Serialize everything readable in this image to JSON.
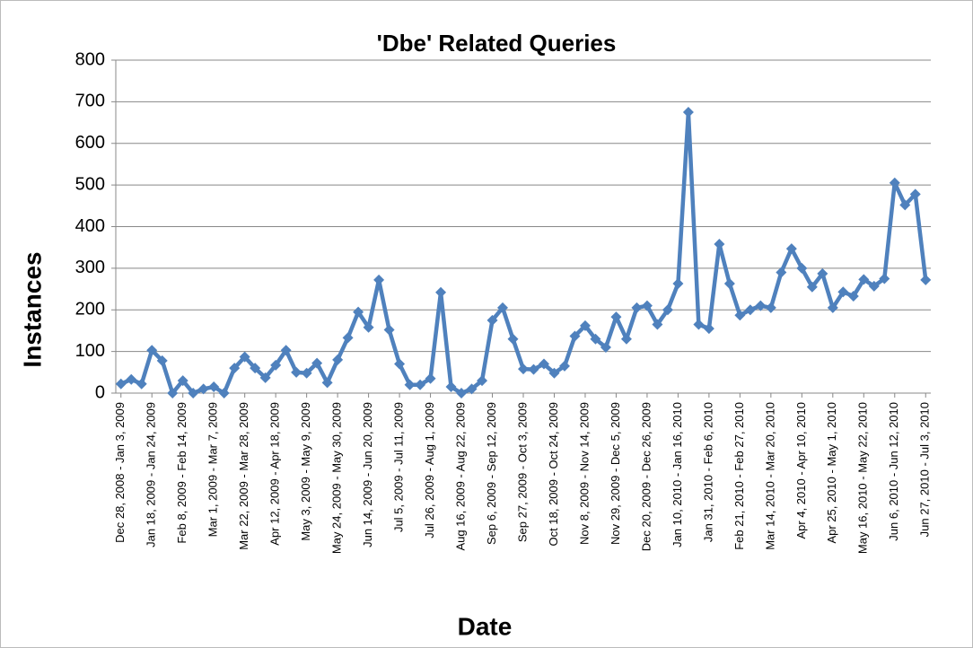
{
  "chart_data": {
    "type": "line",
    "title": "'Dbe' Related Queries",
    "xlabel": "Date",
    "ylabel": "Instances",
    "categories": [
      "Dec 28, 2008 - Jan 3, 2009",
      null,
      null,
      "Jan 18, 2009 - Jan 24, 2009",
      null,
      null,
      "Feb 8, 2009 - Feb 14, 2009",
      null,
      null,
      "Mar 1, 2009 - Mar 7, 2009",
      null,
      null,
      "Mar 22, 2009 - Mar 28, 2009",
      null,
      null,
      "Apr 12, 2009 - Apr 18, 2009",
      null,
      null,
      "May 3, 2009 - May 9, 2009",
      null,
      null,
      "May 24, 2009 - May 30, 2009",
      null,
      null,
      "Jun 14, 2009 - Jun 20, 2009",
      null,
      null,
      "Jul 5, 2009 - Jul 11, 2009",
      null,
      null,
      "Jul 26, 2009 - Aug 1, 2009",
      null,
      null,
      "Aug 16, 2009 - Aug 22, 2009",
      null,
      null,
      "Sep 6, 2009 - Sep 12, 2009",
      null,
      null,
      "Sep 27, 2009 - Oct 3, 2009",
      null,
      null,
      "Oct 18, 2009 - Oct 24, 2009",
      null,
      null,
      "Nov 8, 2009 - Nov 14, 2009",
      null,
      null,
      "Nov 29, 2009 - Dec 5, 2009",
      null,
      null,
      "Dec 20, 2009 - Dec 26, 2009",
      null,
      null,
      "Jan 10, 2010 - Jan 16, 2010",
      null,
      null,
      "Jan 31, 2010 - Feb 6, 2010",
      null,
      null,
      "Feb 21, 2010 - Feb 27, 2010",
      null,
      null,
      "Mar 14, 2010 - Mar 20, 2010",
      null,
      null,
      "Apr 4, 2010 - Apr 10, 2010",
      null,
      null,
      "Apr 25, 2010 - May 1, 2010",
      null,
      null,
      "May 16, 2010 - May 22, 2010",
      null,
      null,
      "Jun 6, 2010 - Jun 12, 2010",
      null,
      null,
      "Jun 27, 2010 - Jul 3, 2010"
    ],
    "values": [
      22,
      33,
      22,
      103,
      78,
      0,
      30,
      0,
      10,
      15,
      0,
      60,
      87,
      60,
      37,
      67,
      103,
      50,
      48,
      72,
      25,
      80,
      133,
      195,
      158,
      272,
      152,
      70,
      20,
      20,
      35,
      242,
      15,
      0,
      10,
      30,
      175,
      205,
      130,
      58,
      57,
      70,
      48,
      65,
      137,
      162,
      130,
      110,
      183,
      130,
      205,
      210,
      165,
      200,
      263,
      675,
      165,
      155,
      358,
      263,
      187,
      200,
      210,
      205,
      290,
      347,
      300,
      255,
      287,
      205,
      243,
      233,
      273,
      257,
      275,
      505,
      452,
      478,
      272
    ],
    "color": "#4f81bd",
    "ylim": [
      0,
      800
    ],
    "yticks": [
      0,
      100,
      200,
      300,
      400,
      500,
      600,
      700,
      800
    ],
    "grid": true
  }
}
